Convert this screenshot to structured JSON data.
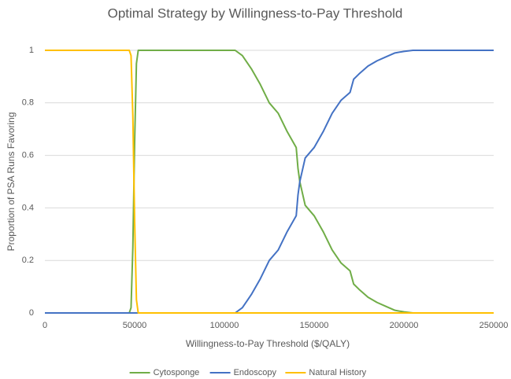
{
  "chart_data": {
    "type": "line",
    "title": "Optimal Strategy by Willingness-to-Pay Threshold",
    "x_label": "Willingness-to-Pay Threshold ($/QALY)",
    "y_label": "Proportion of PSA Runs Favoring",
    "x": [
      0,
      47000,
      48000,
      49000,
      50000,
      51000,
      52000,
      100000,
      106000,
      110000,
      115000,
      120000,
      125000,
      130000,
      135000,
      140000,
      141000,
      142000,
      145000,
      150000,
      155000,
      160000,
      165000,
      170000,
      172000,
      175000,
      180000,
      185000,
      190000,
      195000,
      200000,
      205000,
      250000
    ],
    "series": [
      {
        "name": "Cytosponge",
        "color": "#70ad47",
        "values": [
          0,
          0,
          0.02,
          0.25,
          0.65,
          0.95,
          1,
          1,
          1,
          0.98,
          0.93,
          0.87,
          0.8,
          0.76,
          0.69,
          0.63,
          0.55,
          0.5,
          0.41,
          0.37,
          0.31,
          0.24,
          0.19,
          0.16,
          0.11,
          0.09,
          0.06,
          0.04,
          0.025,
          0.01,
          0.004,
          0,
          0
        ]
      },
      {
        "name": "Endoscopy",
        "color": "#4472c4",
        "values": [
          0,
          0,
          0,
          0,
          0,
          0,
          0,
          0,
          0,
          0.02,
          0.07,
          0.13,
          0.2,
          0.24,
          0.31,
          0.37,
          0.45,
          0.5,
          0.59,
          0.63,
          0.69,
          0.76,
          0.81,
          0.84,
          0.89,
          0.91,
          0.94,
          0.96,
          0.975,
          0.99,
          0.996,
          1,
          1
        ]
      },
      {
        "name": "Natural History",
        "color": "#ffc000",
        "values": [
          1,
          1,
          0.98,
          0.75,
          0.35,
          0.05,
          0,
          0,
          0,
          0,
          0,
          0,
          0,
          0,
          0,
          0,
          0,
          0,
          0,
          0,
          0,
          0,
          0,
          0,
          0,
          0,
          0,
          0,
          0,
          0,
          0,
          0,
          0
        ]
      }
    ],
    "xlim": [
      0,
      250000
    ],
    "xticks": [
      0,
      50000,
      100000,
      150000,
      200000,
      250000
    ],
    "ylim": [
      0,
      1.1
    ],
    "yticks": [
      0,
      0.2,
      0.4,
      0.6,
      0.8,
      1
    ],
    "grid": true,
    "legend": "bottom"
  }
}
